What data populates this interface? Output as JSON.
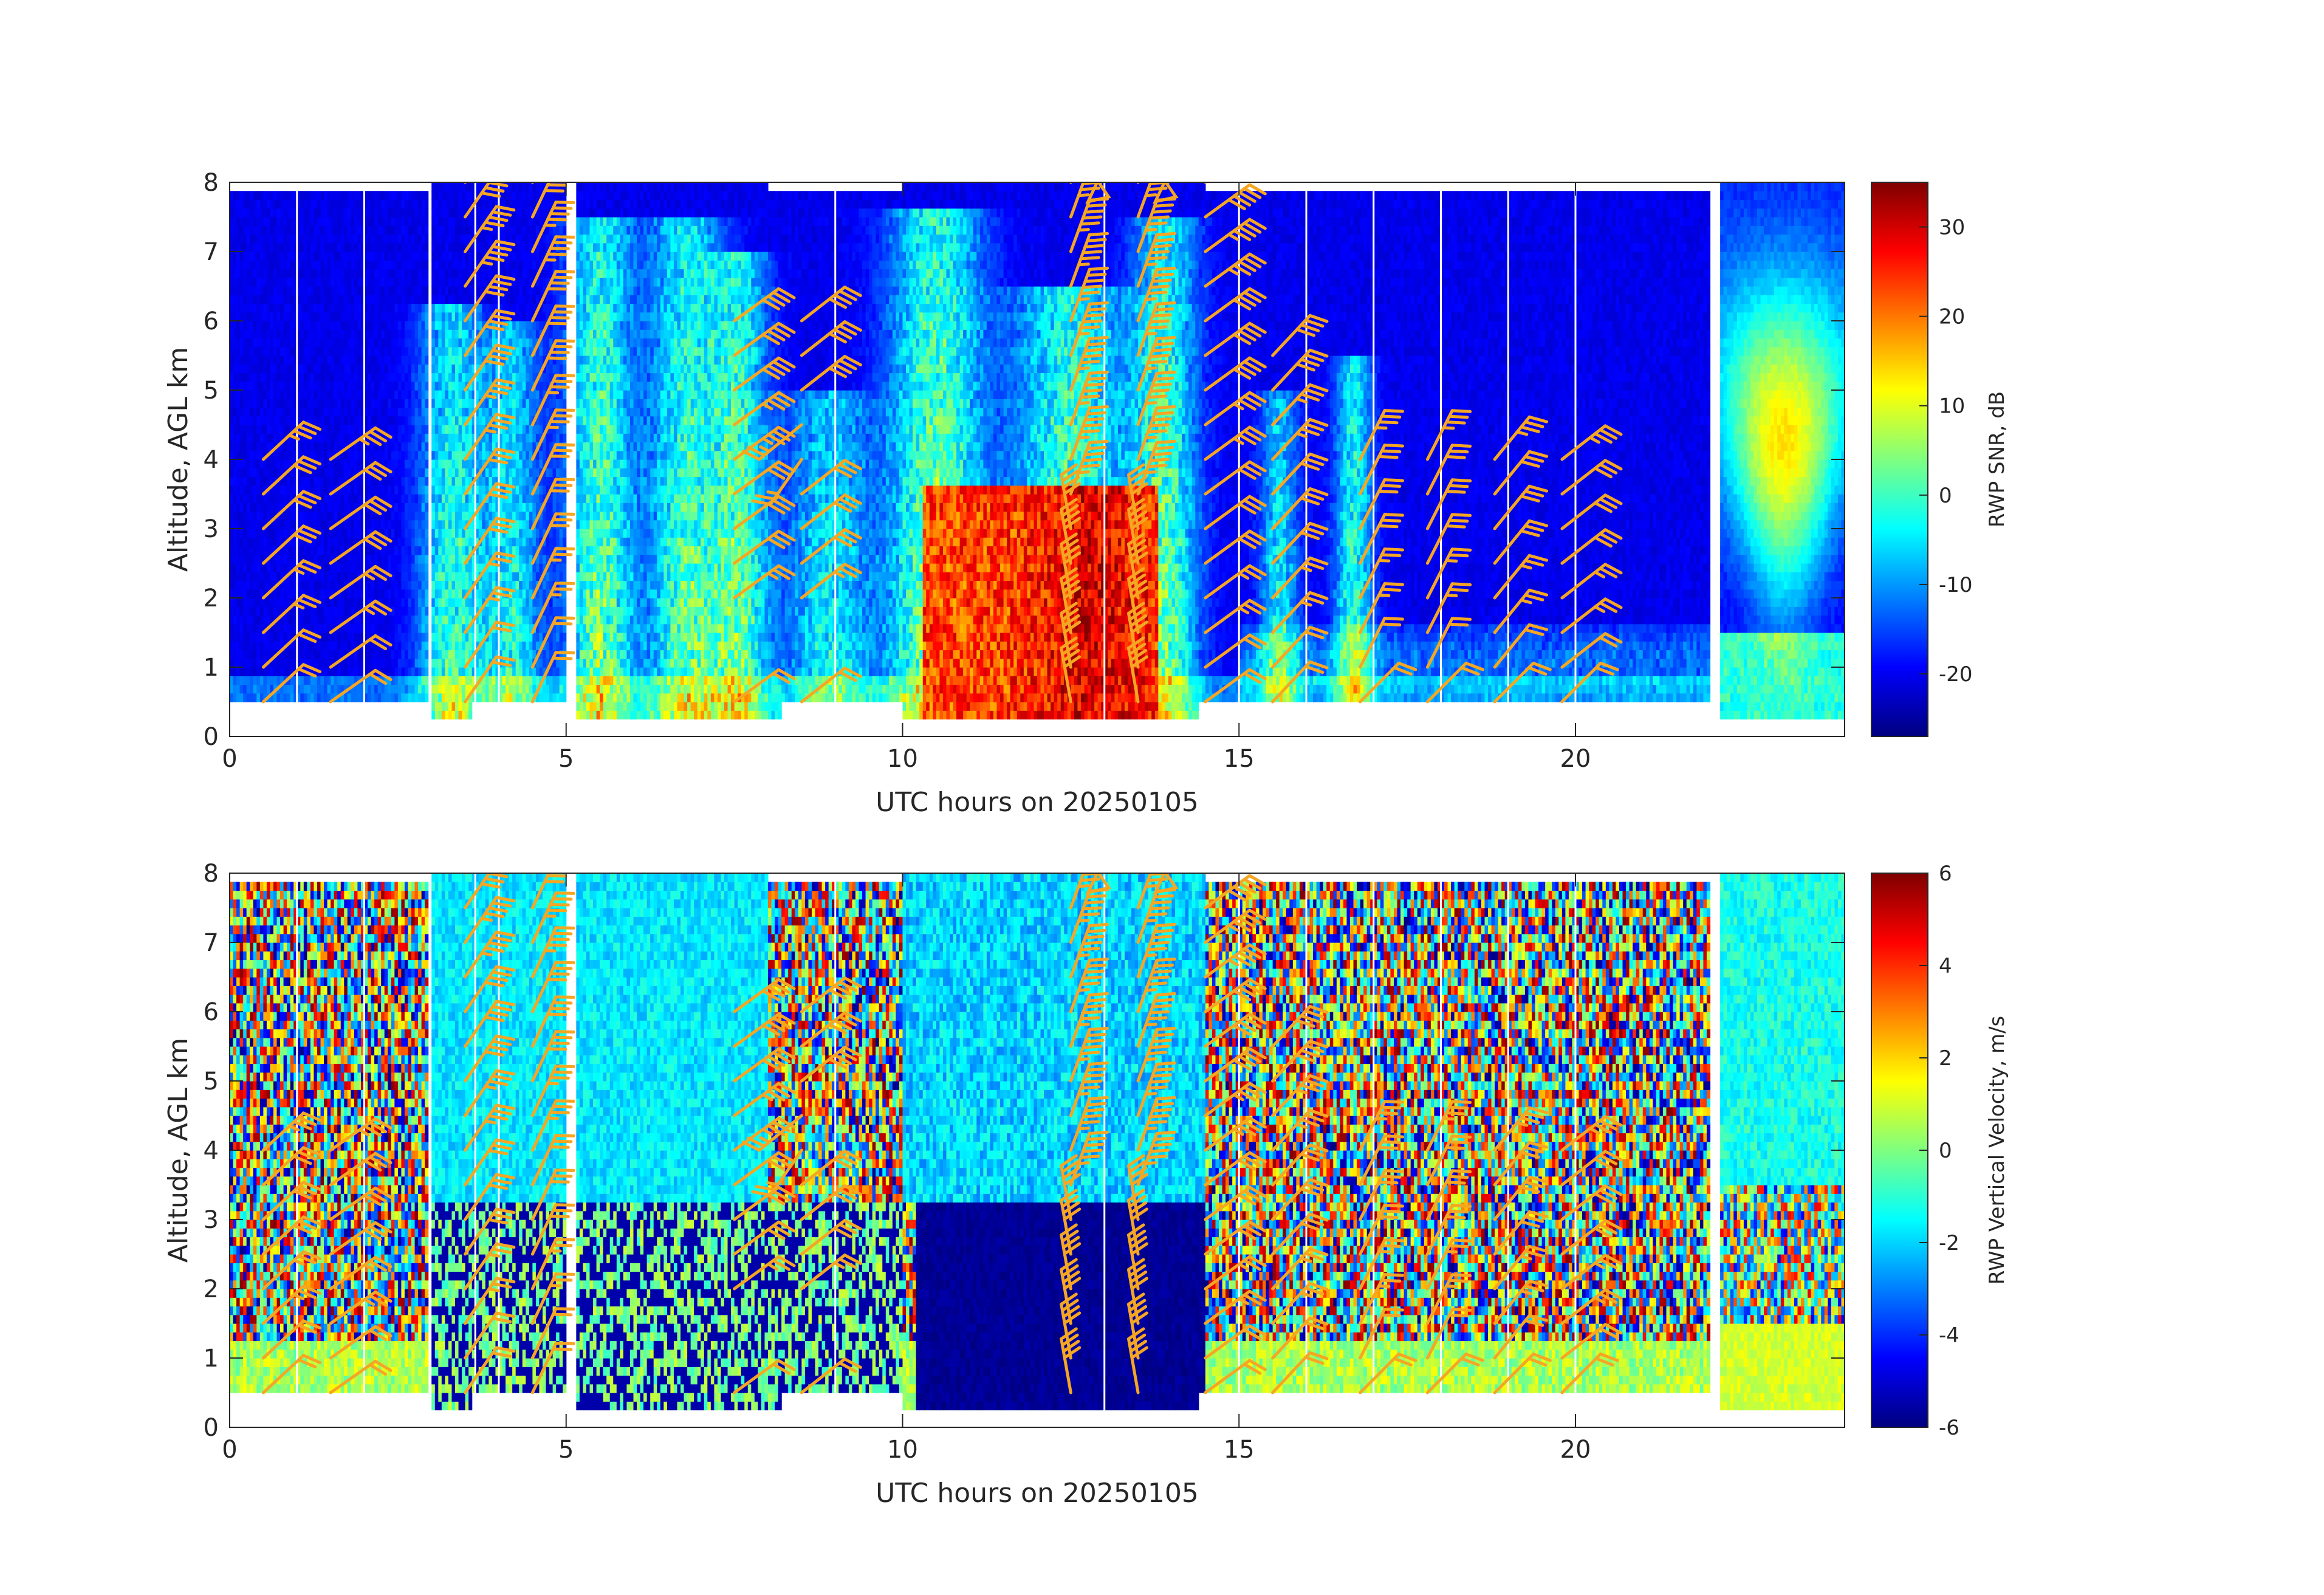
{
  "figure": {
    "colors": {
      "barb": "#f5a623",
      "axes": "#262626",
      "missing": "#ffffff",
      "colormap": [
        "#00007f",
        "#0000ff",
        "#007fff",
        "#00ffff",
        "#7fff7f",
        "#ffff00",
        "#ff7f00",
        "#ff0000",
        "#7f0000"
      ]
    }
  },
  "chart_data": [
    {
      "type": "heatmap",
      "xlabel": "UTC hours on 20250105",
      "ylabel": "Altitude, AGL km",
      "xlim": [
        0,
        24
      ],
      "ylim": [
        0,
        8
      ],
      "xticks": [
        "0",
        "5",
        "10",
        "15",
        "20"
      ],
      "yticks": [
        "0",
        "1",
        "2",
        "3",
        "4",
        "5",
        "6",
        "7",
        "8"
      ],
      "colorbar": {
        "label": "RWP SNR, dB",
        "range": [
          -27,
          35
        ],
        "ticks": [
          "30",
          "20",
          "10",
          "0",
          "-10",
          "-20"
        ],
        "colormap": "jet"
      },
      "data_gaps_hours": [
        [
          2.95,
          3.0
        ],
        [
          5.0,
          5.15
        ],
        [
          22.0,
          22.15
        ]
      ],
      "notable_regions": [
        {
          "hours": [
            10.3,
            13.8
          ],
          "altitude_km": [
            0.2,
            3.6
          ],
          "snr_db": [
            15,
            32
          ]
        },
        {
          "hours": [
            22.2,
            24.0
          ],
          "altitude_km": [
            3.0,
            7.5
          ],
          "snr_db": [
            5,
            15
          ]
        }
      ],
      "wind_barbs": {
        "color": "#f5a623",
        "columns_hours": [
          1.0,
          2.0,
          4.0,
          5.0,
          8.0,
          9.0,
          13.0,
          14.0,
          15.0,
          16.0,
          17.0,
          18.0,
          19.0,
          20.0
        ],
        "altitude_levels_km": [
          0.5,
          1.0,
          1.5,
          2.0,
          2.5,
          3.0,
          3.5,
          4.0,
          4.5,
          5.0,
          5.5,
          6.0,
          6.5,
          7.0,
          7.5,
          8.0
        ]
      }
    },
    {
      "type": "heatmap",
      "xlabel": "UTC hours on 20250105",
      "ylabel": "Altitude, AGL km",
      "xlim": [
        0,
        24
      ],
      "ylim": [
        0,
        8
      ],
      "xticks": [
        "0",
        "5",
        "10",
        "15",
        "20"
      ],
      "yticks": [
        "0",
        "1",
        "2",
        "3",
        "4",
        "5",
        "6",
        "7",
        "8"
      ],
      "colorbar": {
        "label": "RWP Vertical Velocity, m/s",
        "range": [
          -6,
          6
        ],
        "ticks": [
          "6",
          "4",
          "2",
          "0",
          "-2",
          "-4",
          "-6"
        ],
        "colormap": "jet"
      },
      "data_gaps_hours": [
        [
          2.95,
          3.0
        ],
        [
          5.0,
          5.15
        ],
        [
          22.0,
          22.15
        ]
      ],
      "notable_regions": [
        {
          "hours": [
            10.2,
            14.5
          ],
          "altitude_km": [
            0.2,
            3.3
          ],
          "velocity_ms": [
            -6,
            -5
          ]
        },
        {
          "hours": [
            3.0,
            8.0
          ],
          "altitude_km": [
            3.3,
            7.5
          ],
          "velocity_ms": [
            -3,
            -1
          ]
        }
      ],
      "wind_barbs": {
        "color": "#f5a623",
        "columns_hours": [
          1.0,
          2.0,
          4.0,
          5.0,
          8.0,
          9.0,
          13.0,
          14.0,
          15.0,
          16.0,
          17.0,
          18.0,
          19.0,
          20.0
        ],
        "altitude_levels_km": [
          0.5,
          1.0,
          1.5,
          2.0,
          2.5,
          3.0,
          3.5,
          4.0,
          4.5,
          5.0,
          5.5,
          6.0,
          6.5,
          7.0,
          7.5,
          8.0
        ]
      }
    }
  ]
}
